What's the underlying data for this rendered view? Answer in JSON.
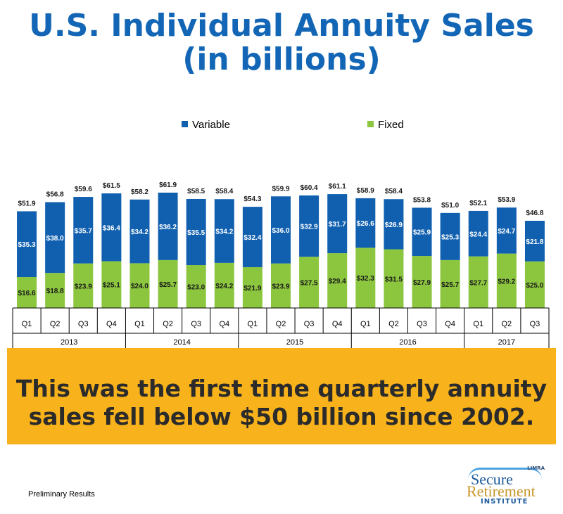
{
  "header": {
    "title_line1": "U.S. Individual Annuity Sales",
    "title_line2": "(in billions)"
  },
  "banner": {
    "line1": "This was the first time quarterly annuity",
    "line2": "sales fell below $50 billion since 2002.",
    "color": "#f8b21b"
  },
  "footnote": "Preliminary Results",
  "logo": {
    "top": "LIMRA",
    "line1": "Secure",
    "line2": "Retirement",
    "line3": "INSTITUTE"
  },
  "chart_data": {
    "type": "bar",
    "stacked": true,
    "categories": [
      "Q1",
      "Q2",
      "Q3",
      "Q4",
      "Q1",
      "Q2",
      "Q3",
      "Q4",
      "Q1",
      "Q2",
      "Q3",
      "Q4",
      "Q1",
      "Q2",
      "Q3",
      "Q4",
      "Q1",
      "Q2",
      "Q3"
    ],
    "groups": [
      {
        "label": "2013",
        "count": 4
      },
      {
        "label": "2014",
        "count": 4
      },
      {
        "label": "2015",
        "count": 4
      },
      {
        "label": "2016",
        "count": 4
      },
      {
        "label": "2017",
        "count": 3
      }
    ],
    "series": [
      {
        "name": "Fixed",
        "color": "#8cc63f",
        "values": [
          16.6,
          18.8,
          23.9,
          25.1,
          24.0,
          25.7,
          23.0,
          24.2,
          21.9,
          23.9,
          27.5,
          29.4,
          32.3,
          31.5,
          27.9,
          25.7,
          27.7,
          29.2,
          25.0
        ]
      },
      {
        "name": "Variable",
        "color": "#1160b0",
        "values": [
          35.3,
          38.0,
          35.7,
          36.4,
          34.2,
          36.2,
          35.5,
          34.2,
          32.4,
          36.0,
          32.9,
          31.7,
          26.6,
          26.9,
          25.9,
          25.3,
          24.4,
          24.7,
          21.8
        ]
      }
    ],
    "totals": [
      51.9,
      56.8,
      59.6,
      61.5,
      58.2,
      61.9,
      58.5,
      58.4,
      54.3,
      59.9,
      60.4,
      61.1,
      58.9,
      58.4,
      53.8,
      51.0,
      52.1,
      53.9,
      46.8
    ],
    "label_prefix": "$",
    "legend": [
      {
        "name": "Variable",
        "color": "#1160b0"
      },
      {
        "name": "Fixed",
        "color": "#8cc63f"
      }
    ],
    "legend_position": "top-center",
    "ylim": [
      0,
      70
    ],
    "grid": false
  }
}
